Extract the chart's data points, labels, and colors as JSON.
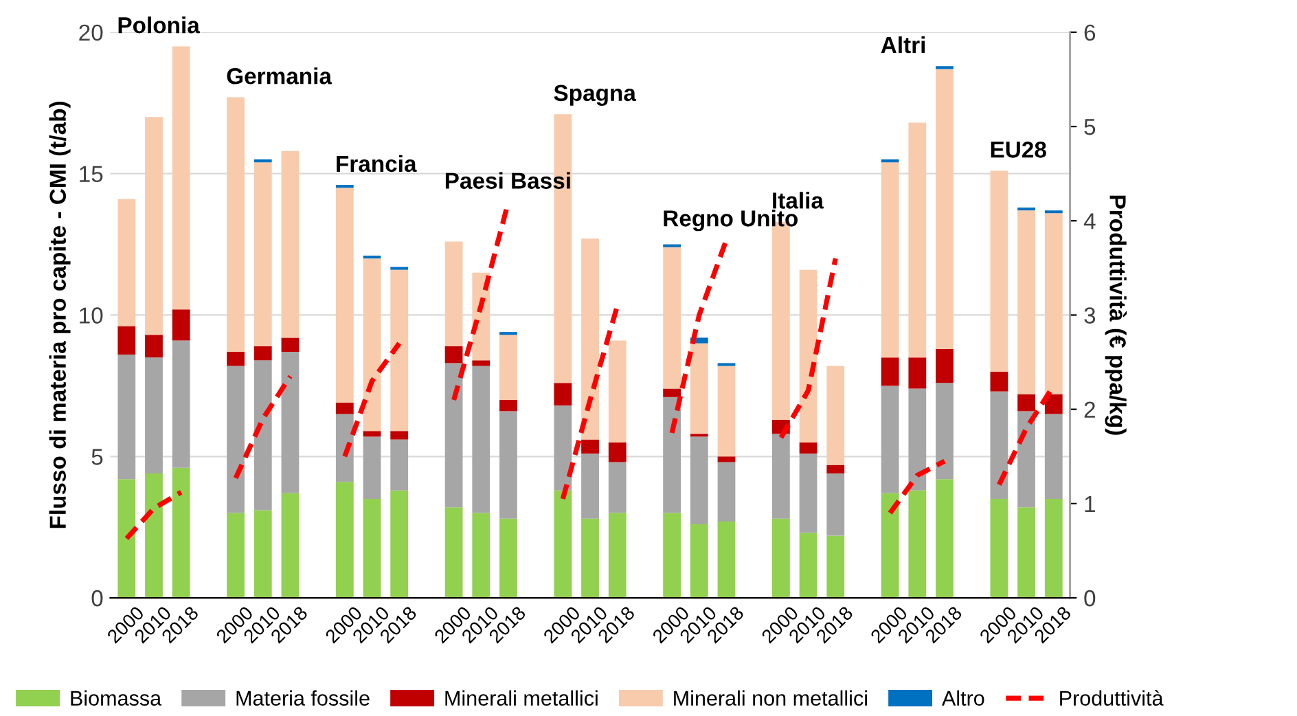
{
  "chart_data": {
    "type": "bar",
    "stacked": true,
    "categories": [
      "2000",
      "2010",
      "2018",
      null,
      "2000",
      "2010",
      "2018",
      null,
      "2000",
      "2010",
      "2018",
      null,
      "2000",
      "2010",
      "2018",
      null,
      "2000",
      "2010",
      "2018",
      null,
      "2000",
      "2010",
      "2018",
      null,
      "2000",
      "2010",
      "2018",
      null,
      "2000",
      "2010",
      "2018",
      null,
      "2000",
      "2010",
      "2018"
    ],
    "series": [
      {
        "name": "Biomassa",
        "color": "#92d050",
        "values": [
          4.2,
          4.4,
          4.6,
          null,
          3.0,
          3.1,
          3.7,
          null,
          4.1,
          3.5,
          3.8,
          null,
          3.2,
          3.0,
          2.8,
          null,
          3.8,
          2.8,
          3.0,
          null,
          3.0,
          2.6,
          2.7,
          null,
          2.8,
          2.3,
          2.2,
          null,
          3.7,
          3.8,
          4.2,
          null,
          3.5,
          3.2,
          3.5
        ]
      },
      {
        "name": "Materia fossile",
        "color": "#a6a6a6",
        "values": [
          4.4,
          4.1,
          4.5,
          null,
          5.2,
          5.3,
          5.0,
          null,
          2.4,
          2.2,
          1.8,
          null,
          5.1,
          5.2,
          3.8,
          null,
          3.0,
          2.3,
          1.8,
          null,
          4.1,
          3.1,
          2.1,
          null,
          3.0,
          2.8,
          2.2,
          null,
          3.8,
          3.6,
          3.4,
          null,
          3.8,
          3.4,
          3.0
        ]
      },
      {
        "name": "Minerali metallici",
        "color": "#c00000",
        "values": [
          1.0,
          0.8,
          1.1,
          null,
          0.5,
          0.5,
          0.5,
          null,
          0.4,
          0.2,
          0.3,
          null,
          0.6,
          0.2,
          0.4,
          null,
          0.8,
          0.5,
          0.7,
          null,
          0.3,
          0.1,
          0.2,
          null,
          0.5,
          0.4,
          0.3,
          null,
          1.0,
          1.1,
          1.2,
          null,
          0.7,
          0.6,
          0.7
        ]
      },
      {
        "name": "Minerali non metallici",
        "color": "#f8cbad",
        "values": [
          4.5,
          7.7,
          9.3,
          null,
          9.0,
          6.5,
          6.6,
          null,
          7.6,
          6.1,
          5.7,
          null,
          3.7,
          3.1,
          2.3,
          null,
          9.5,
          7.1,
          3.6,
          null,
          5.0,
          3.2,
          3.2,
          null,
          7.0,
          6.1,
          3.5,
          null,
          6.9,
          8.3,
          9.9,
          null,
          7.1,
          6.5,
          6.4
        ]
      },
      {
        "name": "Altro",
        "color": "#0070c0",
        "values": [
          null,
          null,
          null,
          null,
          null,
          0.1,
          null,
          null,
          0.1,
          0.1,
          0.1,
          null,
          null,
          null,
          0.1,
          null,
          null,
          null,
          null,
          null,
          0.1,
          0.2,
          0.1,
          null,
          null,
          null,
          null,
          null,
          0.1,
          null,
          0.1,
          null,
          null,
          0.1,
          0.1
        ]
      },
      {
        "name": "Produttività",
        "color": "#ff0000",
        "type": "line",
        "axis": "y2",
        "line_style": "dashed",
        "values": [
          0.63,
          0.95,
          1.12,
          null,
          1.27,
          1.9,
          2.35,
          null,
          1.5,
          2.3,
          2.7,
          null,
          2.1,
          3.1,
          4.2,
          null,
          1.05,
          2.1,
          3.1,
          null,
          1.75,
          3.0,
          3.8,
          null,
          1.7,
          2.2,
          3.6,
          null,
          0.9,
          1.3,
          1.45,
          null,
          1.2,
          1.8,
          2.25
        ]
      }
    ],
    "annotations": [
      "Polonia",
      "Germania",
      "Francia",
      "Paesi Bassi",
      "Spagna",
      "Regno Unito",
      "Italia",
      "Altri",
      "EU28"
    ],
    "ylabel": "Flusso di materia pro capite - CMI (t/ab)",
    "y2label": "Produttività (€ ppa/kg)",
    "ylim": [
      0,
      20
    ],
    "yticks": [
      0,
      5,
      10,
      15,
      20
    ],
    "y2lim": [
      0,
      6
    ],
    "y2ticks": [
      0,
      1,
      2,
      3,
      4,
      5,
      6
    ],
    "grid": "y",
    "legend": "bottom"
  }
}
